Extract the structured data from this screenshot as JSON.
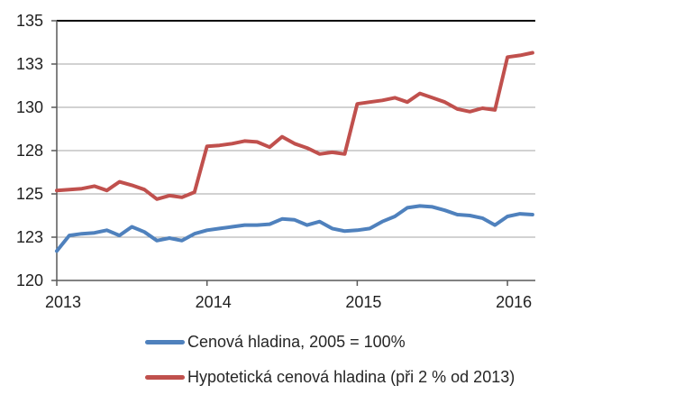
{
  "chart_data": {
    "type": "line",
    "title": "",
    "grid": true,
    "legend_position": "bottom",
    "x_start": "2013-01",
    "x_end": "2016-03",
    "points_per_year": 12,
    "x_tick_labels": [
      "2013",
      "2014",
      "2015",
      "2016"
    ],
    "y_axis": {
      "min": 120,
      "max": 135,
      "ticks": [
        {
          "value": 135,
          "label": "135"
        },
        {
          "value": 132.5,
          "label": "133"
        },
        {
          "value": 130,
          "label": "130"
        },
        {
          "value": 127.5,
          "label": "128"
        },
        {
          "value": 125,
          "label": "125"
        },
        {
          "value": 122.5,
          "label": "123"
        },
        {
          "value": 120,
          "label": "120"
        }
      ]
    },
    "series": [
      {
        "name": "Cenová hladina, 2005 = 100%",
        "color": "#4F81BD",
        "values": [
          121.7,
          122.6,
          122.7,
          122.75,
          122.9,
          122.6,
          123.1,
          122.8,
          122.3,
          122.45,
          122.3,
          122.7,
          122.9,
          123.0,
          123.1,
          123.2,
          123.2,
          123.25,
          123.55,
          123.5,
          123.2,
          123.4,
          123.0,
          122.85,
          122.9,
          123.0,
          123.4,
          123.7,
          124.2,
          124.3,
          124.25,
          124.05,
          123.8,
          123.75,
          123.6,
          123.2,
          123.7,
          123.85,
          123.8
        ]
      },
      {
        "name": "Hypotetická cenová hladina (při 2 % od 2013)",
        "color": "#C0504D",
        "values": [
          125.2,
          125.25,
          125.3,
          125.45,
          125.2,
          125.7,
          125.5,
          125.25,
          124.7,
          124.9,
          124.8,
          125.1,
          127.75,
          127.8,
          127.9,
          128.05,
          128.0,
          127.7,
          128.3,
          127.9,
          127.65,
          127.3,
          127.4,
          127.3,
          130.2,
          130.3,
          130.4,
          130.55,
          130.3,
          130.8,
          130.55,
          130.3,
          129.9,
          129.75,
          129.95,
          129.85,
          132.9,
          133.0,
          133.15
        ]
      }
    ],
    "axis_colors": {
      "gridline": "#A6A6A6",
      "axis_line": "#595959",
      "top_border": "#000000",
      "tick_label": "#1f1f1f"
    }
  }
}
